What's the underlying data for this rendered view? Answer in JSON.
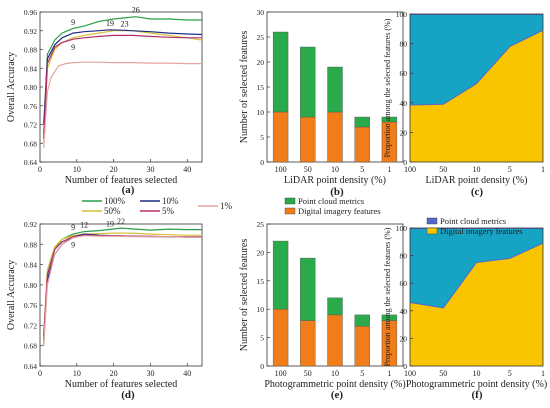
{
  "colors": {
    "p100": "#2a9d4a",
    "p50": "#d7c23a",
    "p10": "#1f2d86",
    "p5": "#b0306a",
    "p1": "#e6a4a0",
    "point_cloud": "#2aaa4a",
    "digital": "#f07d1a",
    "area_blue": "#16a3c4",
    "area_yellow": "#f8c500",
    "area_line": "#5566cc"
  },
  "legends": {
    "density": [
      "100%",
      "10%",
      "1%",
      "50%",
      "5%"
    ],
    "features": [
      "Point cloud metrics",
      "Digital imagery features"
    ]
  },
  "chart_data": [
    {
      "id": "a",
      "type": "line",
      "panel_label": "(a)",
      "xlabel": "Number of features selected",
      "ylabel": "Overall Accuracy",
      "xlim": [
        0,
        44
      ],
      "ylim": [
        0.64,
        0.96
      ],
      "xticks": [
        0,
        10,
        20,
        30,
        40
      ],
      "yticks": [
        0.64,
        0.68,
        0.72,
        0.76,
        0.8,
        0.84,
        0.88,
        0.92,
        0.96
      ],
      "ytick_labels": [
        "0.64",
        "0.68",
        "0.72",
        "0.76",
        "0.80",
        "0.84",
        "0.88",
        "0.92",
        "0.96"
      ],
      "series": [
        {
          "name": "100%",
          "color_key": "p100",
          "x": [
            1,
            2,
            4,
            6,
            9,
            12,
            16,
            20,
            26,
            30,
            35,
            40,
            44
          ],
          "y": [
            0.7,
            0.87,
            0.9,
            0.915,
            0.925,
            0.93,
            0.94,
            0.945,
            0.95,
            0.945,
            0.945,
            0.943,
            0.943
          ]
        },
        {
          "name": "50%",
          "color_key": "p50",
          "x": [
            1,
            2,
            4,
            6,
            9,
            12,
            16,
            20,
            25,
            30,
            35,
            40,
            44
          ],
          "y": [
            0.68,
            0.84,
            0.88,
            0.895,
            0.905,
            0.91,
            0.915,
            0.92,
            0.92,
            0.915,
            0.91,
            0.905,
            0.9
          ]
        },
        {
          "name": "10%",
          "color_key": "p10",
          "x": [
            1,
            2,
            4,
            6,
            9,
            12,
            16,
            19,
            23,
            30,
            35,
            40,
            44
          ],
          "y": [
            0.72,
            0.86,
            0.89,
            0.905,
            0.915,
            0.918,
            0.92,
            0.922,
            0.921,
            0.918,
            0.915,
            0.913,
            0.912
          ]
        },
        {
          "name": "5%",
          "color_key": "p5",
          "x": [
            1,
            2,
            4,
            6,
            9,
            12,
            16,
            20,
            25,
            30,
            35,
            40,
            44
          ],
          "y": [
            0.69,
            0.85,
            0.885,
            0.895,
            0.902,
            0.905,
            0.908,
            0.91,
            0.91,
            0.908,
            0.906,
            0.905,
            0.905
          ]
        },
        {
          "name": "1%",
          "color_key": "p1",
          "x": [
            1,
            2,
            3,
            5,
            7,
            9,
            12,
            16,
            20,
            25,
            30,
            35,
            40,
            44
          ],
          "y": [
            0.67,
            0.79,
            0.82,
            0.845,
            0.85,
            0.852,
            0.853,
            0.853,
            0.852,
            0.852,
            0.851,
            0.851,
            0.85,
            0.85
          ]
        }
      ],
      "annotations": [
        {
          "text": "26",
          "x": 26,
          "y": 0.95,
          "dy": -4
        },
        {
          "text": "19",
          "x": 19,
          "y": 0.922,
          "dy": -4
        },
        {
          "text": "23",
          "x": 23,
          "y": 0.921,
          "dy": -4
        },
        {
          "text": "9",
          "x": 9,
          "y": 0.915,
          "dy": -8
        },
        {
          "text": "9",
          "x": 9,
          "y": 0.905,
          "dy": 12
        }
      ]
    },
    {
      "id": "b",
      "type": "bar",
      "panel_label": "(b)",
      "xlabel": "LiDAR point density (%)",
      "ylabel": "Number of selected features",
      "categories": [
        "100",
        "50",
        "10",
        "5",
        "1"
      ],
      "ylim": [
        0,
        30
      ],
      "yticks": [
        0,
        5,
        10,
        15,
        20,
        25,
        30
      ],
      "series": [
        {
          "name": "Digital imagery features",
          "color_key": "digital",
          "values": [
            10,
            9,
            10,
            7,
            8
          ]
        },
        {
          "name": "Point cloud metrics",
          "color_key": "point_cloud",
          "values": [
            16,
            14,
            9,
            2,
            1
          ]
        }
      ]
    },
    {
      "id": "c",
      "type": "area",
      "panel_label": "(c)",
      "xlabel": "LiDAR point density (%)",
      "ylabel": "Proportion among the selected features (%)",
      "categories": [
        "100",
        "50",
        "10",
        "5",
        "1"
      ],
      "ylim": [
        0,
        100
      ],
      "yticks": [
        0,
        20,
        40,
        60,
        80,
        100
      ],
      "series": [
        {
          "name": "Digital imagery features",
          "color_key": "area_yellow",
          "values": [
            38.5,
            39,
            53,
            78,
            89
          ]
        },
        {
          "name": "Point cloud metrics",
          "color_key": "area_blue",
          "values": [
            61.5,
            61,
            47,
            22,
            11
          ]
        }
      ]
    },
    {
      "id": "d",
      "type": "line",
      "panel_label": "(d)",
      "xlabel": "Number of features selected",
      "ylabel": "Overall Accuracy",
      "xlim": [
        0,
        44
      ],
      "ylim": [
        0.64,
        0.92
      ],
      "xticks": [
        0,
        10,
        20,
        30,
        40
      ],
      "yticks": [
        0.64,
        0.68,
        0.72,
        0.76,
        0.8,
        0.84,
        0.88,
        0.92
      ],
      "ytick_labels": [
        "0.64",
        "0.68",
        "0.72",
        "0.76",
        "0.80",
        "0.84",
        "0.88",
        "0.92"
      ],
      "series": [
        {
          "name": "100%",
          "color_key": "p100",
          "x": [
            1,
            2,
            4,
            6,
            9,
            12,
            16,
            22,
            26,
            30,
            35,
            40,
            44
          ],
          "y": [
            0.68,
            0.82,
            0.87,
            0.89,
            0.9,
            0.905,
            0.907,
            0.912,
            0.91,
            0.908,
            0.91,
            0.909,
            0.909
          ]
        },
        {
          "name": "50%",
          "color_key": "p50",
          "x": [
            1,
            2,
            4,
            6,
            9,
            12,
            16,
            20,
            25,
            30,
            35,
            40,
            44
          ],
          "y": [
            0.7,
            0.83,
            0.875,
            0.89,
            0.897,
            0.9,
            0.901,
            0.902,
            0.902,
            0.9,
            0.899,
            0.898,
            0.898
          ]
        },
        {
          "name": "10%",
          "color_key": "p10",
          "x": [
            1,
            2,
            4,
            6,
            9,
            12,
            16,
            20,
            25,
            30,
            35,
            40,
            44
          ],
          "y": [
            0.69,
            0.81,
            0.86,
            0.88,
            0.895,
            0.9,
            0.898,
            0.897,
            0.896,
            0.895,
            0.895,
            0.894,
            0.894
          ]
        },
        {
          "name": "5%",
          "color_key": "p5",
          "x": [
            1,
            2,
            4,
            6,
            9,
            12,
            16,
            20,
            25,
            30,
            35,
            40,
            44
          ],
          "y": [
            0.7,
            0.82,
            0.87,
            0.885,
            0.895,
            0.898,
            0.897,
            0.897,
            0.896,
            0.896,
            0.895,
            0.895,
            0.895
          ]
        },
        {
          "name": "1%",
          "color_key": "p1",
          "x": [
            1,
            2,
            4,
            6,
            9,
            12,
            16,
            20,
            25,
            30,
            35,
            40,
            44
          ],
          "y": [
            0.68,
            0.8,
            0.86,
            0.88,
            0.893,
            0.897,
            0.896,
            0.896,
            0.895,
            0.895,
            0.895,
            0.894,
            0.894
          ]
        }
      ],
      "annotations": [
        {
          "text": "9",
          "x": 9,
          "y": 0.9,
          "dy": -4
        },
        {
          "text": "12",
          "x": 12,
          "y": 0.905,
          "dy": -4
        },
        {
          "text": "19",
          "x": 19,
          "y": 0.907,
          "dy": -4
        },
        {
          "text": "22",
          "x": 22,
          "y": 0.912,
          "dy": -4
        },
        {
          "text": "9",
          "x": 9,
          "y": 0.895,
          "dy": 11
        }
      ]
    },
    {
      "id": "e",
      "type": "bar",
      "panel_label": "(e)",
      "xlabel": "Photogrammetric point density (%)",
      "ylabel": "Number of selected features",
      "categories": [
        "100",
        "50",
        "10",
        "5",
        "1"
      ],
      "ylim": [
        0,
        25
      ],
      "yticks": [
        0,
        5,
        10,
        15,
        20,
        25
      ],
      "series": [
        {
          "name": "Digital imagery features",
          "color_key": "digital",
          "values": [
            10,
            8,
            9,
            7,
            8
          ]
        },
        {
          "name": "Point cloud metrics",
          "color_key": "point_cloud",
          "values": [
            12,
            11,
            3,
            2,
            1
          ]
        }
      ]
    },
    {
      "id": "f",
      "type": "area",
      "panel_label": "(f)",
      "xlabel": "Photogrammetric point density (%)",
      "ylabel": "Proportion among the selected features (%)",
      "categories": [
        "100",
        "50",
        "10",
        "5",
        "1"
      ],
      "ylim": [
        0,
        100
      ],
      "yticks": [
        0,
        20,
        40,
        60,
        80,
        100
      ],
      "series": [
        {
          "name": "Digital imagery features",
          "color_key": "area_yellow",
          "values": [
            46,
            42,
            75,
            78,
            89
          ]
        },
        {
          "name": "Point cloud metrics",
          "color_key": "area_blue",
          "values": [
            54,
            58,
            25,
            22,
            11
          ]
        }
      ]
    }
  ]
}
